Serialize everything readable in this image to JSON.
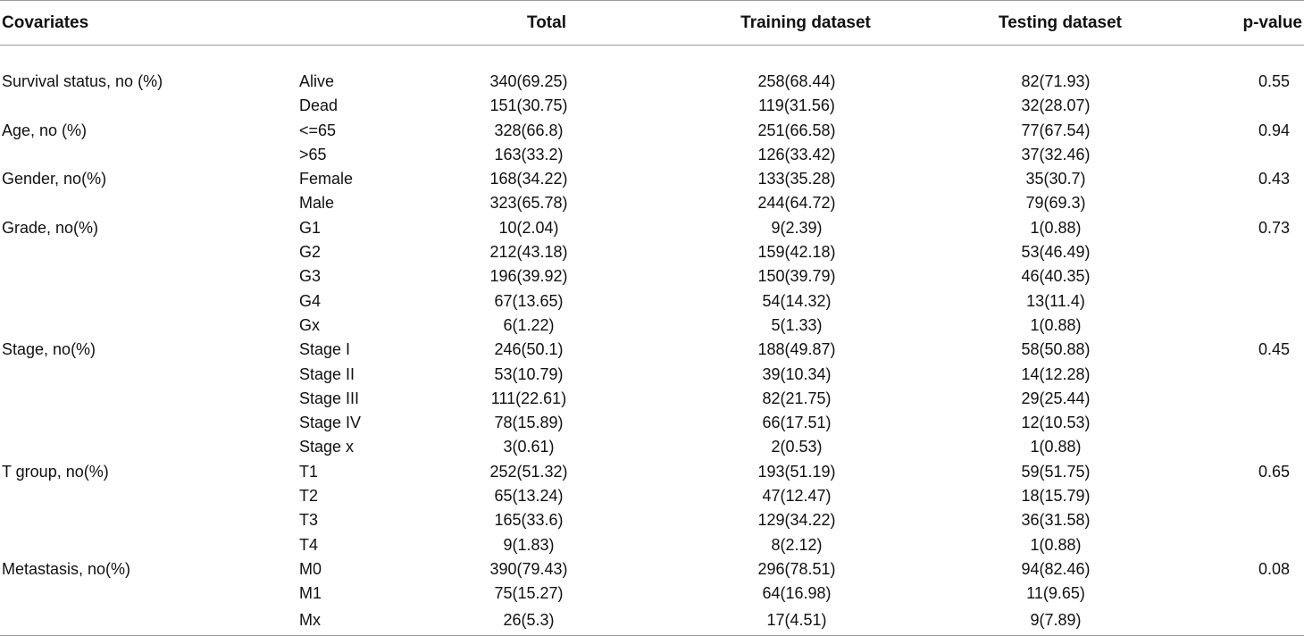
{
  "table": {
    "headers": {
      "covariates": "Covariates",
      "category": "",
      "total": "Total",
      "training": "Training dataset",
      "testing": "Testing dataset",
      "pvalue": "p-value"
    },
    "rows": [
      {
        "covariate": "Survival status, no (%)",
        "category": "Alive",
        "total": "340(69.25)",
        "training": "258(68.44)",
        "testing": "82(71.93)",
        "pvalue": "0.55"
      },
      {
        "covariate": "",
        "category": "Dead",
        "total": "151(30.75)",
        "training": "119(31.56)",
        "testing": "32(28.07)",
        "pvalue": ""
      },
      {
        "covariate": "Age, no (%)",
        "category": "<=65",
        "total": "328(66.8)",
        "training": "251(66.58)",
        "testing": "77(67.54)",
        "pvalue": "0.94"
      },
      {
        "covariate": "",
        "category": ">65",
        "total": "163(33.2)",
        "training": "126(33.42)",
        "testing": "37(32.46)",
        "pvalue": ""
      },
      {
        "covariate": "Gender, no(%)",
        "category": "Female",
        "total": "168(34.22)",
        "training": "133(35.28)",
        "testing": "35(30.7)",
        "pvalue": "0.43"
      },
      {
        "covariate": "",
        "category": "Male",
        "total": "323(65.78)",
        "training": "244(64.72)",
        "testing": "79(69.3)",
        "pvalue": ""
      },
      {
        "covariate": "Grade, no(%)",
        "category": "G1",
        "total": "10(2.04)",
        "training": "9(2.39)",
        "testing": "1(0.88)",
        "pvalue": "0.73"
      },
      {
        "covariate": "",
        "category": "G2",
        "total": "212(43.18)",
        "training": "159(42.18)",
        "testing": "53(46.49)",
        "pvalue": ""
      },
      {
        "covariate": "",
        "category": "G3",
        "total": "196(39.92)",
        "training": "150(39.79)",
        "testing": "46(40.35)",
        "pvalue": ""
      },
      {
        "covariate": "",
        "category": "G4",
        "total": "67(13.65)",
        "training": "54(14.32)",
        "testing": "13(11.4)",
        "pvalue": ""
      },
      {
        "covariate": "",
        "category": "Gx",
        "total": "6(1.22)",
        "training": "5(1.33)",
        "testing": "1(0.88)",
        "pvalue": ""
      },
      {
        "covariate": "Stage, no(%)",
        "category": "Stage I",
        "total": "246(50.1)",
        "training": "188(49.87)",
        "testing": "58(50.88)",
        "pvalue": "0.45"
      },
      {
        "covariate": "",
        "category": "Stage II",
        "total": "53(10.79)",
        "training": "39(10.34)",
        "testing": "14(12.28)",
        "pvalue": ""
      },
      {
        "covariate": "",
        "category": "Stage III",
        "total": "111(22.61)",
        "training": "82(21.75)",
        "testing": "29(25.44)",
        "pvalue": ""
      },
      {
        "covariate": "",
        "category": "Stage IV",
        "total": "78(15.89)",
        "training": "66(17.51)",
        "testing": "12(10.53)",
        "pvalue": ""
      },
      {
        "covariate": "",
        "category": "Stage x",
        "total": "3(0.61)",
        "training": "2(0.53)",
        "testing": "1(0.88)",
        "pvalue": ""
      },
      {
        "covariate": "T group, no(%)",
        "category": "T1",
        "total": "252(51.32)",
        "training": "193(51.19)",
        "testing": "59(51.75)",
        "pvalue": "0.65"
      },
      {
        "covariate": "",
        "category": "T2",
        "total": "65(13.24)",
        "training": "47(12.47)",
        "testing": "18(15.79)",
        "pvalue": ""
      },
      {
        "covariate": "",
        "category": "T3",
        "total": "165(33.6)",
        "training": "129(34.22)",
        "testing": "36(31.58)",
        "pvalue": ""
      },
      {
        "covariate": "",
        "category": "T4",
        "total": "9(1.83)",
        "training": "8(2.12)",
        "testing": "1(0.88)",
        "pvalue": ""
      },
      {
        "covariate": "Metastasis, no(%)",
        "category": "M0",
        "total": "390(79.43)",
        "training": "296(78.51)",
        "testing": "94(82.46)",
        "pvalue": "0.08"
      },
      {
        "covariate": "",
        "category": "M1",
        "total": "75(15.27)",
        "training": "64(16.98)",
        "testing": "11(9.65)",
        "pvalue": ""
      },
      {
        "covariate": "",
        "category": "Mx",
        "total": "26(5.3)",
        "training": "17(4.51)",
        "testing": "9(7.89)",
        "pvalue": ""
      }
    ]
  }
}
